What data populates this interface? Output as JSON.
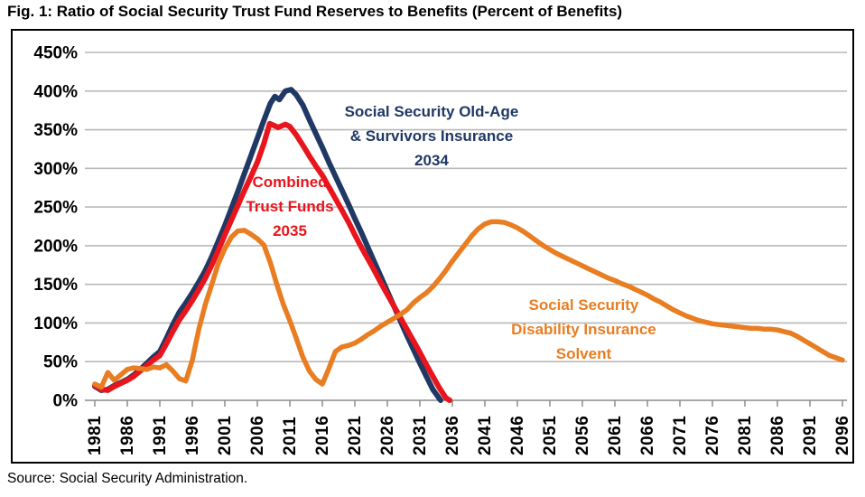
{
  "title": "Fig. 1: Ratio of Social Security Trust Fund Reserves to Benefits (Percent of Benefits)",
  "source": "Source: Social Security Administration.",
  "colors": {
    "oasi": "#1F3864",
    "combined": "#E8151D",
    "di": "#E87D22",
    "grid": "#B9B9B9",
    "axis": "#8C8C8C",
    "text": "#000000",
    "background": "#FFFFFF"
  },
  "chart_data": {
    "type": "line",
    "title": "Fig. 1: Ratio of Social Security Trust Fund Reserves to Benefits (Percent of Benefits)",
    "xlabel": "",
    "ylabel": "Percent of Benefits",
    "ylim": [
      0,
      450
    ],
    "ytick_step": 50,
    "ytick_labels": [
      "0%",
      "50%",
      "100%",
      "150%",
      "200%",
      "250%",
      "300%",
      "350%",
      "400%",
      "450%"
    ],
    "xtick_labels": [
      "1981",
      "1986",
      "1991",
      "1996",
      "2001",
      "2006",
      "2011",
      "2016",
      "2021",
      "2026",
      "2031",
      "2036",
      "2041",
      "2046",
      "2051",
      "2056",
      "2061",
      "2066",
      "2071",
      "2076",
      "2081",
      "2086",
      "2091",
      "2096"
    ],
    "grid": true,
    "legend_position": "inline-annotations",
    "series": [
      {
        "id": "oasi",
        "name": "Social Security Old-Age & Survivors Insurance",
        "color": "#1F3864",
        "depletion_year": 2034,
        "points": [
          [
            1981,
            18
          ],
          [
            1982,
            13
          ],
          [
            1983,
            14
          ],
          [
            1984,
            19
          ],
          [
            1985,
            23
          ],
          [
            1986,
            27
          ],
          [
            1987,
            33
          ],
          [
            1988,
            40
          ],
          [
            1989,
            48
          ],
          [
            1990,
            56
          ],
          [
            1991,
            63
          ],
          [
            1992,
            80
          ],
          [
            1993,
            98
          ],
          [
            1994,
            114
          ],
          [
            1995,
            126
          ],
          [
            1996,
            139
          ],
          [
            1997,
            153
          ],
          [
            1998,
            168
          ],
          [
            1999,
            186
          ],
          [
            2000,
            206
          ],
          [
            2001,
            226
          ],
          [
            2002,
            248
          ],
          [
            2003,
            270
          ],
          [
            2004,
            293
          ],
          [
            2005,
            316
          ],
          [
            2006,
            339
          ],
          [
            2007,
            362
          ],
          [
            2008,
            384
          ],
          [
            2008.7,
            393
          ],
          [
            2009.4,
            389
          ],
          [
            2010.3,
            400
          ],
          [
            2011.2,
            402
          ],
          [
            2012,
            395
          ],
          [
            2013,
            382
          ],
          [
            2014,
            363
          ],
          [
            2015,
            345
          ],
          [
            2016,
            327
          ],
          [
            2017,
            308
          ],
          [
            2018,
            290
          ],
          [
            2019,
            272
          ],
          [
            2020,
            254
          ],
          [
            2021,
            235
          ],
          [
            2022,
            217
          ],
          [
            2023,
            198
          ],
          [
            2024,
            179
          ],
          [
            2025,
            160
          ],
          [
            2026,
            141
          ],
          [
            2027,
            122
          ],
          [
            2028,
            103
          ],
          [
            2029,
            84
          ],
          [
            2030,
            66
          ],
          [
            2031,
            48
          ],
          [
            2032,
            31
          ],
          [
            2033,
            14
          ],
          [
            2034.2,
            0
          ]
        ]
      },
      {
        "id": "combined",
        "name": "Combined Trust Funds",
        "color": "#E8151D",
        "depletion_year": 2035,
        "points": [
          [
            1981,
            19
          ],
          [
            1982,
            14
          ],
          [
            1983,
            13
          ],
          [
            1984,
            18
          ],
          [
            1985,
            22
          ],
          [
            1986,
            26
          ],
          [
            1987,
            31
          ],
          [
            1988,
            38
          ],
          [
            1989,
            45
          ],
          [
            1990,
            52
          ],
          [
            1991,
            58
          ],
          [
            1992,
            73
          ],
          [
            1993,
            89
          ],
          [
            1994,
            104
          ],
          [
            1995,
            116
          ],
          [
            1996,
            129
          ],
          [
            1997,
            143
          ],
          [
            1998,
            158
          ],
          [
            1999,
            175
          ],
          [
            2000,
            194
          ],
          [
            2001,
            214
          ],
          [
            2002,
            233
          ],
          [
            2003,
            252
          ],
          [
            2004,
            271
          ],
          [
            2005,
            289
          ],
          [
            2006,
            308
          ],
          [
            2007,
            332
          ],
          [
            2007.9,
            358
          ],
          [
            2009.2,
            353
          ],
          [
            2010.3,
            357
          ],
          [
            2011,
            354
          ],
          [
            2012,
            343
          ],
          [
            2013,
            330
          ],
          [
            2014,
            316
          ],
          [
            2015,
            303
          ],
          [
            2016,
            291
          ],
          [
            2017,
            276
          ],
          [
            2018,
            261
          ],
          [
            2019,
            246
          ],
          [
            2020,
            231
          ],
          [
            2021,
            214
          ],
          [
            2022,
            198
          ],
          [
            2023,
            183
          ],
          [
            2024,
            168
          ],
          [
            2025,
            152
          ],
          [
            2026,
            137
          ],
          [
            2027,
            122
          ],
          [
            2028,
            107
          ],
          [
            2029,
            92
          ],
          [
            2030,
            77
          ],
          [
            2031,
            62
          ],
          [
            2032,
            46
          ],
          [
            2033,
            31
          ],
          [
            2034,
            16
          ],
          [
            2035,
            3
          ],
          [
            2035.6,
            0
          ]
        ]
      },
      {
        "id": "di",
        "name": "Social Security Disability Insurance",
        "color": "#E87D22",
        "depletion_year": null,
        "points": [
          [
            1981,
            21
          ],
          [
            1982,
            17
          ],
          [
            1983,
            36
          ],
          [
            1984,
            26
          ],
          [
            1985,
            33
          ],
          [
            1986,
            40
          ],
          [
            1987,
            42
          ],
          [
            1988,
            41
          ],
          [
            1989,
            40
          ],
          [
            1990,
            43
          ],
          [
            1991,
            42
          ],
          [
            1992,
            46
          ],
          [
            1993,
            38
          ],
          [
            1994,
            28
          ],
          [
            1995,
            25
          ],
          [
            1996,
            52
          ],
          [
            1997,
            92
          ],
          [
            1998,
            124
          ],
          [
            1999,
            150
          ],
          [
            2000,
            177
          ],
          [
            2001,
            196
          ],
          [
            2002,
            211
          ],
          [
            2003,
            219
          ],
          [
            2004,
            220
          ],
          [
            2005,
            215
          ],
          [
            2006,
            209
          ],
          [
            2007,
            201
          ],
          [
            2008,
            178
          ],
          [
            2009,
            150
          ],
          [
            2010,
            124
          ],
          [
            2011,
            103
          ],
          [
            2012,
            80
          ],
          [
            2013,
            56
          ],
          [
            2014,
            38
          ],
          [
            2015,
            27
          ],
          [
            2016,
            21
          ],
          [
            2017,
            41
          ],
          [
            2018,
            63
          ],
          [
            2019,
            69
          ],
          [
            2020,
            71
          ],
          [
            2021,
            74
          ],
          [
            2022,
            79
          ],
          [
            2023,
            85
          ],
          [
            2024,
            90
          ],
          [
            2025,
            96
          ],
          [
            2026,
            101
          ],
          [
            2027,
            106
          ],
          [
            2028,
            111
          ],
          [
            2029,
            117
          ],
          [
            2030,
            126
          ],
          [
            2031,
            133
          ],
          [
            2032,
            139
          ],
          [
            2033,
            147
          ],
          [
            2034,
            157
          ],
          [
            2035,
            168
          ],
          [
            2036,
            180
          ],
          [
            2037,
            191
          ],
          [
            2038,
            202
          ],
          [
            2039,
            213
          ],
          [
            2040,
            222
          ],
          [
            2041,
            228
          ],
          [
            2042,
            231
          ],
          [
            2043,
            231
          ],
          [
            2044,
            230
          ],
          [
            2045,
            227
          ],
          [
            2046,
            223
          ],
          [
            2047,
            218
          ],
          [
            2048,
            212
          ],
          [
            2049,
            206
          ],
          [
            2050,
            200
          ],
          [
            2051,
            195
          ],
          [
            2052,
            190
          ],
          [
            2053,
            186
          ],
          [
            2054,
            182
          ],
          [
            2055,
            178
          ],
          [
            2056,
            174
          ],
          [
            2057,
            170
          ],
          [
            2058,
            166
          ],
          [
            2059,
            162
          ],
          [
            2060,
            158
          ],
          [
            2061,
            155
          ],
          [
            2062,
            151
          ],
          [
            2063,
            148
          ],
          [
            2064,
            144
          ],
          [
            2065,
            140
          ],
          [
            2066,
            136
          ],
          [
            2067,
            131
          ],
          [
            2068,
            127
          ],
          [
            2069,
            122
          ],
          [
            2070,
            117
          ],
          [
            2071,
            113
          ],
          [
            2072,
            109
          ],
          [
            2073,
            106
          ],
          [
            2074,
            103
          ],
          [
            2075,
            101
          ],
          [
            2076,
            99
          ],
          [
            2077,
            98
          ],
          [
            2078,
            97
          ],
          [
            2079,
            96
          ],
          [
            2080,
            95
          ],
          [
            2081,
            94
          ],
          [
            2082,
            93
          ],
          [
            2083,
            93
          ],
          [
            2084,
            92
          ],
          [
            2085,
            92
          ],
          [
            2086,
            91
          ],
          [
            2087,
            89
          ],
          [
            2088,
            87
          ],
          [
            2089,
            83
          ],
          [
            2090,
            78
          ],
          [
            2091,
            73
          ],
          [
            2092,
            68
          ],
          [
            2093,
            63
          ],
          [
            2094,
            58
          ],
          [
            2095,
            55
          ],
          [
            2096,
            52
          ]
        ]
      }
    ],
    "annotations": [
      {
        "id": "oasi",
        "lines": [
          "Social Security Old-Age",
          "& Survivors Insurance",
          "2034"
        ],
        "color": "#1F3864",
        "anchor_year": 2032.8,
        "anchor_pct": 367
      },
      {
        "id": "combined",
        "lines": [
          "Combined",
          "Trust Funds",
          "2035"
        ],
        "color": "#E8151D",
        "anchor_year": 2011.0,
        "anchor_pct": 276
      },
      {
        "id": "di",
        "lines": [
          "Social Security",
          "Disability Insurance",
          "Solvent"
        ],
        "color": "#E87D22",
        "anchor_year": 2056.2,
        "anchor_pct": 117
      }
    ]
  }
}
